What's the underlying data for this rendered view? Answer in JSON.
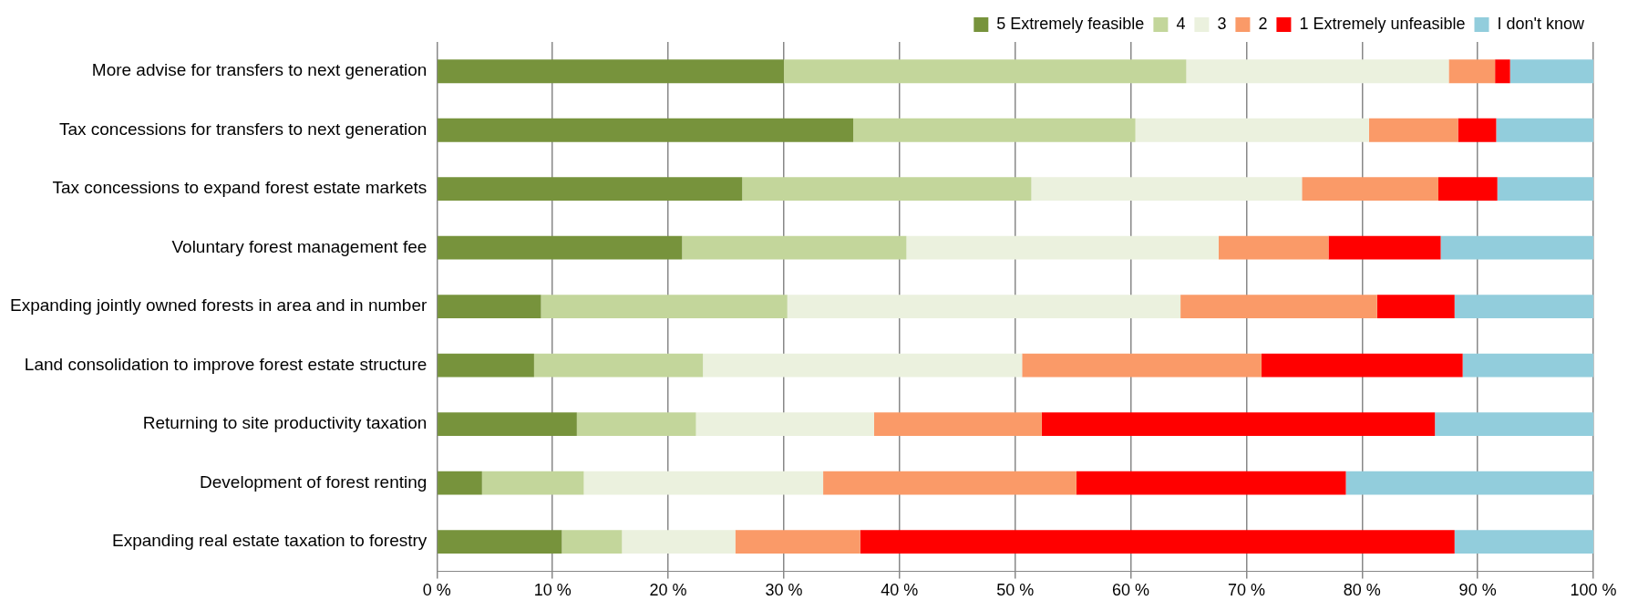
{
  "chart_data": {
    "type": "bar",
    "orientation": "horizontal",
    "stacked": true,
    "legend": "top",
    "grid": "x",
    "categories": [
      "More advise for transfers to next generation",
      "Tax concessions for transfers to next generation",
      "Tax concessions to expand forest estate markets",
      "Voluntary forest management fee",
      "Expanding jointly owned forests in area and in number",
      "Land consolidation to improve forest estate structure",
      "Returning to site productivity taxation",
      "Development of forest renting",
      "Expanding real estate taxation to forestry"
    ],
    "series": [
      {
        "name": "5 Extremely feasible",
        "color": "#77933c",
        "values": [
          30,
          36,
          26.4,
          21.2,
          9,
          8.4,
          12.1,
          3.9,
          10.8
        ]
      },
      {
        "name": "4",
        "color": "#c3d69b",
        "values": [
          34.8,
          24.4,
          25,
          19.4,
          21.3,
          14.6,
          10.3,
          8.8,
          5.2
        ]
      },
      {
        "name": "3",
        "color": "#ebf1de",
        "values": [
          22.7,
          20.2,
          23.4,
          27,
          34,
          27.6,
          15.4,
          20.7,
          9.8
        ]
      },
      {
        "name": "2",
        "color": "#fa9a68",
        "values": [
          4,
          7.7,
          11.8,
          9.5,
          17,
          20.7,
          14.5,
          21.9,
          10.8
        ]
      },
      {
        "name": "1 Extremely unfeasible",
        "color": "#ff0000",
        "values": [
          1.3,
          3.3,
          5.1,
          9.7,
          6.7,
          17.4,
          34,
          23.3,
          51.4
        ]
      },
      {
        "name": "I don't know",
        "color": "#92cddc",
        "values": [
          7.2,
          8.4,
          8.3,
          13.2,
          12,
          11.3,
          13.7,
          21.4,
          12
        ]
      }
    ],
    "xlim": [
      0,
      100
    ],
    "xticks": [
      {
        "value": 0,
        "label": "0 %"
      },
      {
        "value": 10,
        "label": "10 %"
      },
      {
        "value": 20,
        "label": "20 %"
      },
      {
        "value": 30,
        "label": "30 %"
      },
      {
        "value": 40,
        "label": "40 %"
      },
      {
        "value": 50,
        "label": "50 %"
      },
      {
        "value": 60,
        "label": "60 %"
      },
      {
        "value": 70,
        "label": "70 %"
      },
      {
        "value": 80,
        "label": "80 %"
      },
      {
        "value": 90,
        "label": "90 %"
      },
      {
        "value": 100,
        "label": "100 %"
      }
    ]
  }
}
